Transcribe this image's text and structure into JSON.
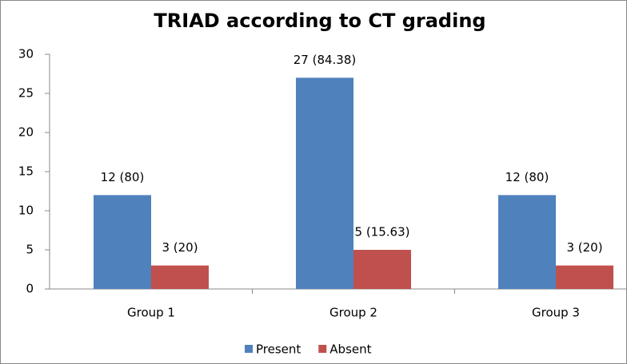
{
  "chart_data": {
    "type": "bar",
    "title": "TRIAD according to CT grading",
    "categories": [
      "Group 1",
      "Group 2",
      "Group 3"
    ],
    "series": [
      {
        "name": "Present",
        "color": "#4f81bd",
        "values": [
          12,
          27,
          12
        ],
        "value_labels": [
          "12 (80)",
          "27 (84.38)",
          "12 (80)"
        ]
      },
      {
        "name": "Absent",
        "color": "#c0504d",
        "values": [
          3,
          5,
          3
        ],
        "value_labels": [
          "3 (20)",
          "5 (15.63)",
          "3 (20)"
        ]
      }
    ],
    "ylim": [
      0,
      30
    ],
    "yticks": [
      0,
      5,
      10,
      15,
      20,
      25,
      30
    ],
    "grid": false,
    "legend": "bottom"
  }
}
